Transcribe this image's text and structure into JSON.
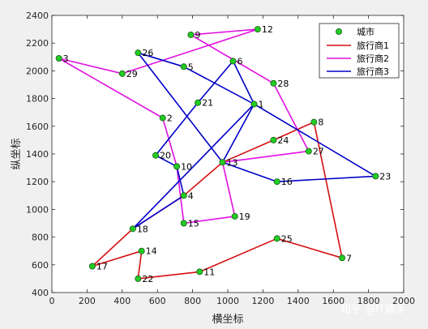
{
  "watermark": "知乎 @IT猿手",
  "chart_data": {
    "type": "scatter",
    "xlabel": "横坐标",
    "ylabel": "纵坐标",
    "xlim": [
      0,
      2000
    ],
    "ylim": [
      400,
      2400
    ],
    "xticks": [
      0,
      200,
      400,
      600,
      800,
      1000,
      1200,
      1400,
      1600,
      1800,
      2000
    ],
    "yticks": [
      400,
      600,
      800,
      1000,
      1200,
      1400,
      1600,
      1800,
      2000,
      2200,
      2400
    ],
    "grid": false,
    "legend_position": "top-right",
    "cities": {
      "name": "城市",
      "color": "#22cc22",
      "points": [
        {
          "id": "1",
          "x": 1150,
          "y": 1760
        },
        {
          "id": "2",
          "x": 630,
          "y": 1660
        },
        {
          "id": "3",
          "x": 40,
          "y": 2090
        },
        {
          "id": "4",
          "x": 750,
          "y": 1100
        },
        {
          "id": "5",
          "x": 750,
          "y": 2030
        },
        {
          "id": "6",
          "x": 1030,
          "y": 2070
        },
        {
          "id": "7",
          "x": 1650,
          "y": 650
        },
        {
          "id": "8",
          "x": 1490,
          "y": 1630
        },
        {
          "id": "9",
          "x": 790,
          "y": 2260
        },
        {
          "id": "10",
          "x": 710,
          "y": 1310
        },
        {
          "id": "11",
          "x": 840,
          "y": 550
        },
        {
          "id": "12",
          "x": 1170,
          "y": 2300
        },
        {
          "id": "13",
          "x": 970,
          "y": 1340
        },
        {
          "id": "15",
          "x": 750,
          "y": 900
        },
        {
          "id": "16",
          "x": 1280,
          "y": 1200
        },
        {
          "id": "17",
          "x": 230,
          "y": 590
        },
        {
          "id": "18",
          "x": 460,
          "y": 860
        },
        {
          "id": "19",
          "x": 1040,
          "y": 950
        },
        {
          "id": "20",
          "x": 590,
          "y": 1390
        },
        {
          "id": "21",
          "x": 830,
          "y": 1770
        },
        {
          "id": "22",
          "x": 490,
          "y": 500
        },
        {
          "id": "23",
          "x": 1840,
          "y": 1240
        },
        {
          "id": "24",
          "x": 1260,
          "y": 1500
        },
        {
          "id": "25",
          "x": 1280,
          "y": 790
        },
        {
          "id": "26",
          "x": 490,
          "y": 2130
        },
        {
          "id": "27",
          "x": 1460,
          "y": 1420
        },
        {
          "id": "28",
          "x": 1260,
          "y": 1910
        },
        {
          "id": "29",
          "x": 400,
          "y": 1980
        },
        {
          "id": "14",
          "x": 510,
          "y": 700
        }
      ]
    },
    "series": [
      {
        "name": "旅行商1",
        "color": "#d40f0f",
        "route": [
          "13",
          "4",
          "18",
          "17",
          "14",
          "22",
          "11",
          "25",
          "7",
          "8",
          "24",
          "13"
        ]
      },
      {
        "name": "旅行商2",
        "color": "#e010e0",
        "route": [
          "13",
          "27",
          "28",
          "9",
          "12",
          "29",
          "3",
          "2",
          "10",
          "15",
          "19",
          "13"
        ]
      },
      {
        "name": "旅行商3",
        "color": "#0000c8",
        "route": [
          "13",
          "1",
          "5",
          "26",
          "13",
          "16",
          "23",
          "1",
          "6",
          "21",
          "20",
          "10",
          "4",
          "18",
          "1"
        ]
      }
    ]
  }
}
